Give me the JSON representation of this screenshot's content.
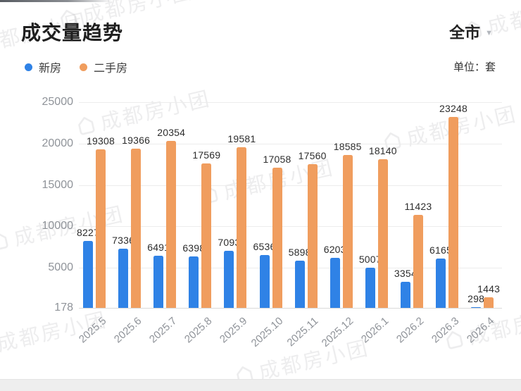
{
  "header": {
    "title": "成交量趋势",
    "region_selector": {
      "label": "全市",
      "caret": "▼"
    },
    "unit_label": "单位：套"
  },
  "legend": [
    {
      "label": "新房",
      "color": "#2f82e6"
    },
    {
      "label": "二手房",
      "color": "#f09d5e"
    }
  ],
  "watermark": {
    "text": "成都房小团"
  },
  "chart_data": {
    "type": "bar",
    "title": "成交量趋势",
    "unit": "套",
    "categories": [
      "2025.5",
      "2025.6",
      "2025.7",
      "2025.8",
      "2025.9",
      "2025.10",
      "2025.11",
      "2025.12",
      "2026.1",
      "2026.2",
      "2026.3",
      "2026.4"
    ],
    "series": [
      {
        "name": "新房",
        "color": "#2f82e6",
        "values": [
          8227,
          7336,
          6491,
          6398,
          7093,
          6536,
          5898,
          6203,
          5007,
          3354,
          6165,
          298
        ]
      },
      {
        "name": "二手房",
        "color": "#f09d5e",
        "values": [
          19308,
          19366,
          20354,
          17569,
          19581,
          17058,
          17560,
          18585,
          18140,
          11423,
          23248,
          1443
        ]
      }
    ],
    "yticks": [
      178,
      5000,
      10000,
      15000,
      20000,
      25000
    ],
    "ylim": [
      178,
      25000
    ],
    "grid": true,
    "legend_position": "top-left",
    "data_labels": true
  }
}
